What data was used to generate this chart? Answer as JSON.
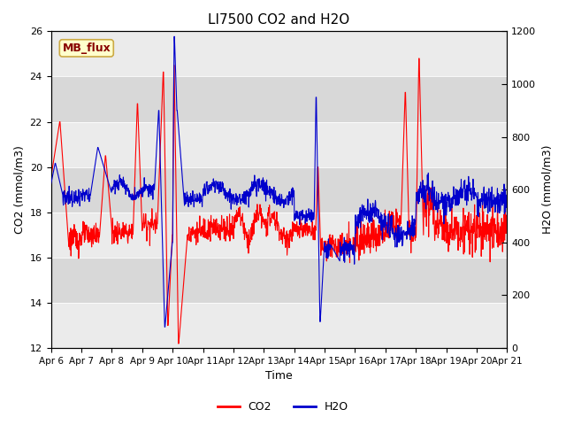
{
  "title": "LI7500 CO2 and H2O",
  "xlabel": "Time",
  "ylabel_left": "CO2 (mmol/m3)",
  "ylabel_right": "H2O (mmol/m3)",
  "ylim_left": [
    12,
    26
  ],
  "ylim_right": [
    0,
    1200
  ],
  "yticks_left": [
    12,
    14,
    16,
    18,
    20,
    22,
    24,
    26
  ],
  "yticks_right": [
    0,
    200,
    400,
    600,
    800,
    1000,
    1200
  ],
  "xtick_labels": [
    "Apr 6",
    "Apr 7",
    "Apr 8",
    "Apr 9",
    "Apr 10",
    "Apr 11",
    "Apr 12",
    "Apr 13",
    "Apr 14",
    "Apr 15",
    "Apr 16",
    "Apr 17",
    "Apr 18",
    "Apr 19",
    "Apr 20",
    "Apr 21"
  ],
  "text_box_label": "MB_flux",
  "text_box_bg": "#FFFFCC",
  "text_box_edge": "#CCAA44",
  "text_box_text_color": "#880000",
  "plot_bg_light": "#F0F0F0",
  "plot_bg_dark": "#D8D8D8",
  "co2_color": "#FF0000",
  "h2o_color": "#0000CC",
  "line_width": 0.8,
  "title_fontsize": 11,
  "axis_fontsize": 9,
  "tick_fontsize": 8,
  "legend_fontsize": 9
}
